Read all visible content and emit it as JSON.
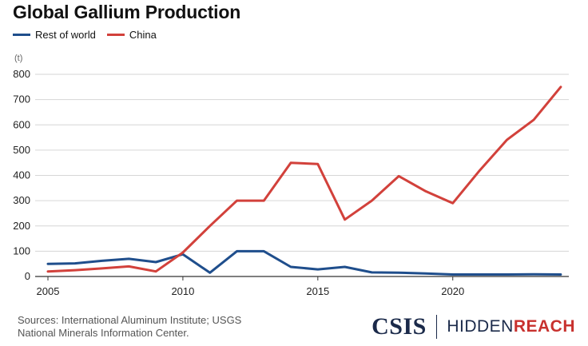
{
  "chart_data": {
    "type": "line",
    "title": "Global Gallium Production",
    "unit_label": "(t)",
    "x": [
      2005,
      2006,
      2007,
      2008,
      2009,
      2010,
      2011,
      2012,
      2013,
      2014,
      2015,
      2016,
      2017,
      2018,
      2019,
      2020,
      2021,
      2022,
      2023,
      2024
    ],
    "series": [
      {
        "name": "Rest of world",
        "color": "#1f4e8c",
        "values": [
          50,
          52,
          62,
          70,
          57,
          88,
          15,
          100,
          100,
          38,
          28,
          38,
          16,
          15,
          12,
          8,
          8,
          8,
          9,
          8
        ]
      },
      {
        "name": "China",
        "color": "#d2413b",
        "values": [
          20,
          25,
          32,
          40,
          20,
          95,
          200,
          300,
          300,
          450,
          445,
          225,
          300,
          397,
          337,
          290,
          420,
          540,
          620,
          750
        ]
      }
    ],
    "xticks": [
      "2005",
      "2010",
      "2015",
      "2020"
    ],
    "yticks": [
      "0",
      "100",
      "200",
      "300",
      "400",
      "500",
      "600",
      "700",
      "800"
    ],
    "ylim": [
      0,
      800
    ],
    "xlim": [
      2005,
      2024.3
    ],
    "legend_position": "top-left",
    "grid": "horizontal"
  },
  "source": {
    "line1": "Sources: International Aluminum Institute; USGS",
    "line2": "National Minerals Information Center."
  },
  "logos": {
    "csis": "CSIS",
    "hidden": "HIDDEN",
    "reach": "REACH"
  }
}
